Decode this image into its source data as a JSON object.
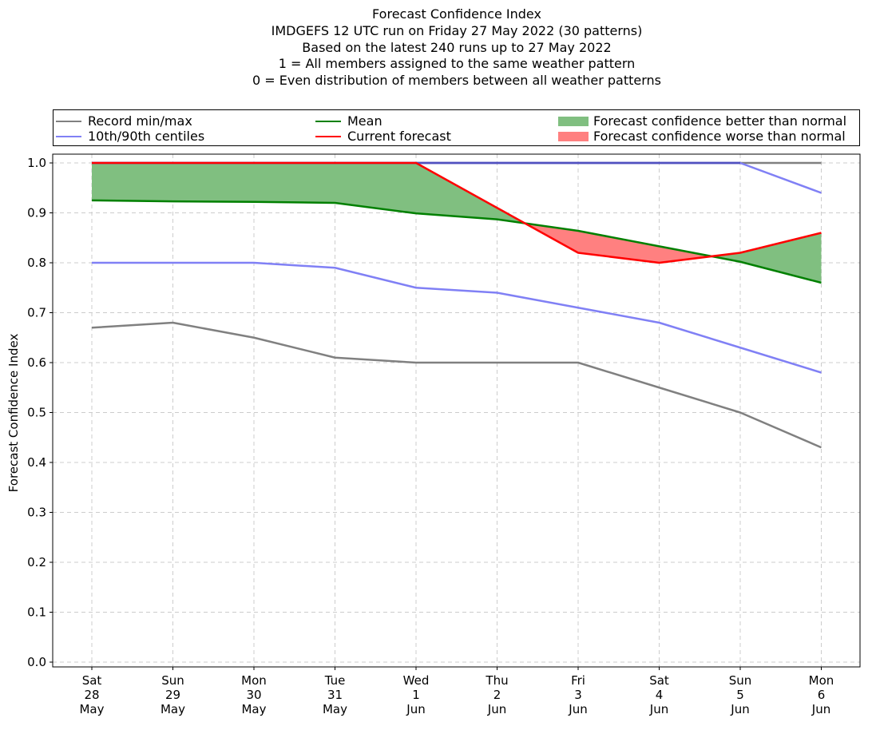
{
  "title_lines": [
    "Forecast Confidence Index",
    "IMDGEFS 12 UTC run on Friday 27 May 2022 (30 patterns)",
    "Based on the latest 240 runs up to 27 May 2022",
    "1 = All members assigned to the same weather pattern",
    "0 = Even distribution of members between all weather patterns"
  ],
  "legend": {
    "record": "Record min/max",
    "centiles": "10th/90th centiles",
    "mean": "Mean",
    "current": "Current forecast",
    "better": "Forecast confidence better than normal",
    "worse": "Forecast confidence worse than normal"
  },
  "colors": {
    "record": "#808080",
    "centiles": "#8080f5",
    "mean": "#008000",
    "current": "#ff0000",
    "better": "#80bf80",
    "worse": "#ff8080",
    "overlap": "#5050c0",
    "grid": "#cccccc"
  },
  "chart_data": {
    "type": "line",
    "ylabel": "Forecast Confidence Index",
    "ylim": [
      0.0,
      1.0
    ],
    "yticks": [
      "0.0",
      "0.1",
      "0.2",
      "0.3",
      "0.4",
      "0.5",
      "0.6",
      "0.7",
      "0.8",
      "0.9",
      "1.0"
    ],
    "x_labels": [
      [
        "Sat",
        "28",
        "May"
      ],
      [
        "Sun",
        "29",
        "May"
      ],
      [
        "Mon",
        "30",
        "May"
      ],
      [
        "Tue",
        "31",
        "May"
      ],
      [
        "Wed",
        "1",
        "Jun"
      ],
      [
        "Thu",
        "2",
        "Jun"
      ],
      [
        "Fri",
        "3",
        "Jun"
      ],
      [
        "Sat",
        "4",
        "Jun"
      ],
      [
        "Sun",
        "5",
        "Jun"
      ],
      [
        "Mon",
        "6",
        "Jun"
      ]
    ],
    "grid": true,
    "legend_position": "top",
    "series": {
      "record_max": [
        1.0,
        1.0,
        1.0,
        1.0,
        1.0,
        1.0,
        1.0,
        1.0,
        1.0,
        1.0
      ],
      "record_min": [
        0.67,
        0.68,
        0.65,
        0.61,
        0.6,
        0.6,
        0.6,
        0.55,
        0.5,
        0.43
      ],
      "p90": [
        1.0,
        1.0,
        1.0,
        1.0,
        1.0,
        1.0,
        1.0,
        1.0,
        1.0,
        0.94
      ],
      "p10": [
        0.8,
        0.8,
        0.8,
        0.79,
        0.75,
        0.74,
        0.71,
        0.68,
        0.63,
        0.58
      ],
      "mean": [
        0.925,
        0.923,
        0.922,
        0.92,
        0.899,
        0.887,
        0.864,
        0.833,
        0.802,
        0.76
      ],
      "current": [
        1.0,
        1.0,
        1.0,
        1.0,
        1.0,
        0.91,
        0.82,
        0.8,
        0.82,
        0.86
      ]
    }
  }
}
